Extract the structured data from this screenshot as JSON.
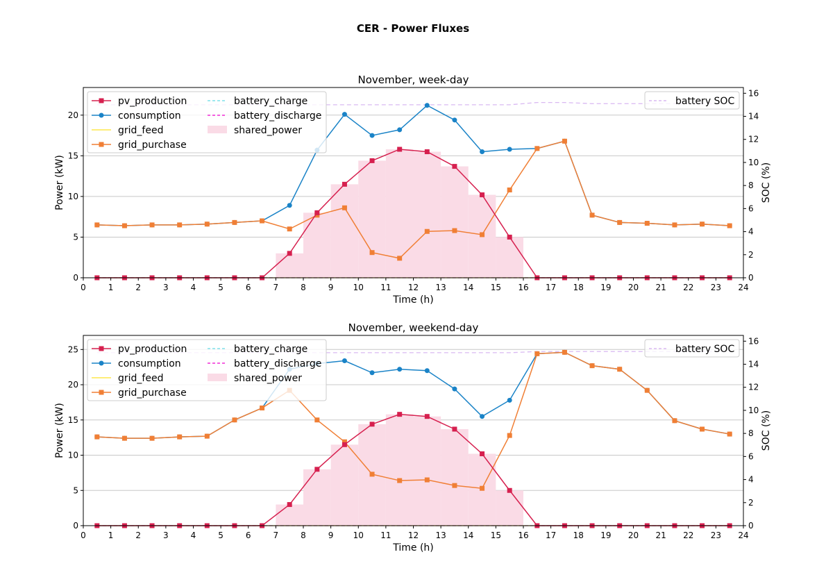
{
  "figure": {
    "title": "CER - Power Fluxes"
  },
  "colors": {
    "pv_production": "#d6204f",
    "consumption": "#1a83c7",
    "grid_feed": "#fde74c",
    "grid_purchase": "#f07f35",
    "battery_charge": "#7fe0ea",
    "battery_discharge": "#f02bd5",
    "shared_power": "#fadbe6",
    "battery_SOC": "#d9b8f2",
    "grid": "#c8c8c8"
  },
  "chart_data": [
    {
      "type": "line",
      "title": "November, week-day",
      "xlabel": "Time (h)",
      "ylabel": "Power (kW)",
      "y2label": "SOC (%)",
      "xlim": [
        0,
        24
      ],
      "ylim": [
        0,
        23.4
      ],
      "y2lim": [
        0,
        16.5
      ],
      "xticks": [
        0,
        1,
        2,
        3,
        4,
        5,
        6,
        7,
        8,
        9,
        10,
        11,
        12,
        13,
        14,
        15,
        16,
        17,
        18,
        19,
        20,
        21,
        22,
        23,
        24
      ],
      "yticks": [
        0,
        5,
        10,
        15,
        20
      ],
      "y2ticks": [
        0,
        2,
        4,
        6,
        8,
        10,
        12,
        14,
        16
      ],
      "grid": "horizontal",
      "legend_placement": "upper-left",
      "legend2_placement": "upper-right",
      "x": [
        0.5,
        1.5,
        2.5,
        3.5,
        4.5,
        5.5,
        6.5,
        7.5,
        8.5,
        9.5,
        10.5,
        11.5,
        12.5,
        13.5,
        14.5,
        15.5,
        16.5,
        17.5,
        18.5,
        19.5,
        20.5,
        21.5,
        22.5,
        23.5
      ],
      "series": [
        {
          "name": "pv_production",
          "kind": "line",
          "marker": "square",
          "values": [
            0,
            0,
            0,
            0,
            0,
            0,
            0,
            3,
            8,
            11.5,
            14.4,
            15.8,
            15.5,
            13.7,
            10.2,
            5,
            0,
            0,
            0,
            0,
            0,
            0,
            0,
            0
          ]
        },
        {
          "name": "consumption",
          "kind": "line",
          "marker": "circle",
          "values": [
            6.5,
            6.4,
            6.5,
            6.5,
            6.6,
            6.8,
            7,
            8.9,
            15.7,
            20.1,
            17.5,
            18.2,
            21.2,
            19.4,
            15.5,
            15.8,
            15.9,
            16.8,
            7.7,
            6.8,
            6.7,
            6.5,
            6.6,
            6.4
          ]
        },
        {
          "name": "grid_feed",
          "kind": "line",
          "marker": "none",
          "values": [
            0,
            0,
            0,
            0,
            0,
            0,
            0,
            0,
            0,
            0,
            0,
            0,
            0,
            0,
            0,
            0,
            0,
            0,
            0,
            0,
            0,
            0,
            0,
            0
          ]
        },
        {
          "name": "grid_purchase",
          "kind": "line",
          "marker": "square",
          "values": [
            6.5,
            6.4,
            6.5,
            6.5,
            6.6,
            6.8,
            7,
            6,
            7.7,
            8.6,
            3.1,
            2.4,
            5.7,
            5.8,
            5.3,
            10.8,
            15.9,
            16.8,
            7.7,
            6.8,
            6.7,
            6.5,
            6.6,
            6.4
          ]
        },
        {
          "name": "battery_charge",
          "kind": "dashed",
          "values": [
            0,
            0,
            0,
            0,
            0,
            0,
            0,
            0,
            0,
            0,
            0,
            0,
            0,
            0,
            0,
            0,
            0,
            0,
            0,
            0,
            0,
            0,
            0,
            0
          ]
        },
        {
          "name": "battery_discharge",
          "kind": "dashed",
          "values": [
            0,
            0,
            0,
            0,
            0,
            0,
            0,
            0,
            0,
            0,
            0,
            0,
            0,
            0,
            0,
            0,
            0,
            0,
            0,
            0,
            0,
            0,
            0,
            0
          ]
        },
        {
          "name": "shared_power",
          "kind": "step-fill",
          "values": [
            0,
            0,
            0,
            0,
            0,
            0,
            0,
            3,
            8,
            11.5,
            14.4,
            15.8,
            15.5,
            13.7,
            10.2,
            5,
            0,
            0,
            0,
            0,
            0,
            0,
            0,
            0
          ]
        },
        {
          "name": "battery SOC",
          "kind": "dashed",
          "axis": "right",
          "values": [
            15,
            15,
            15,
            15,
            15,
            15,
            15,
            15,
            15,
            15,
            15,
            15,
            15,
            15,
            15,
            15,
            15.2,
            15.2,
            15.1,
            15.1,
            15.1,
            15.1,
            15.1,
            15.1
          ]
        }
      ]
    },
    {
      "type": "line",
      "title": "November, weekend-day",
      "xlabel": "Time (h)",
      "ylabel": "Power (kW)",
      "y2label": "SOC (%)",
      "xlim": [
        0,
        24
      ],
      "ylim": [
        0,
        27
      ],
      "y2lim": [
        0,
        16.5
      ],
      "xticks": [
        0,
        1,
        2,
        3,
        4,
        5,
        6,
        7,
        8,
        9,
        10,
        11,
        12,
        13,
        14,
        15,
        16,
        17,
        18,
        19,
        20,
        21,
        22,
        23,
        24
      ],
      "yticks": [
        0,
        5,
        10,
        15,
        20,
        25
      ],
      "y2ticks": [
        0,
        2,
        4,
        6,
        8,
        10,
        12,
        14,
        16
      ],
      "grid": "horizontal",
      "legend_placement": "upper-left",
      "legend2_placement": "upper-right",
      "x": [
        0.5,
        1.5,
        2.5,
        3.5,
        4.5,
        5.5,
        6.5,
        7.5,
        8.5,
        9.5,
        10.5,
        11.5,
        12.5,
        13.5,
        14.5,
        15.5,
        16.5,
        17.5,
        18.5,
        19.5,
        20.5,
        21.5,
        22.5,
        23.5
      ],
      "series": [
        {
          "name": "pv_production",
          "kind": "line",
          "marker": "square",
          "values": [
            0,
            0,
            0,
            0,
            0,
            0,
            0,
            3,
            8,
            11.5,
            14.4,
            15.8,
            15.5,
            13.7,
            10.2,
            5,
            0,
            0,
            0,
            0,
            0,
            0,
            0,
            0
          ]
        },
        {
          "name": "consumption",
          "kind": "line",
          "marker": "circle",
          "values": [
            12.6,
            12.4,
            12.4,
            12.6,
            12.7,
            15,
            16.7,
            22.2,
            23,
            23.4,
            21.7,
            22.2,
            22,
            19.4,
            15.5,
            17.8,
            24.4,
            24.6,
            22.7,
            22.2,
            19.2,
            14.9,
            13.7,
            13
          ]
        },
        {
          "name": "grid_feed",
          "kind": "line",
          "marker": "none",
          "values": [
            0,
            0,
            0,
            0,
            0,
            0,
            0,
            0,
            0,
            0,
            0,
            0,
            0,
            0,
            0,
            0,
            0,
            0,
            0,
            0,
            0,
            0,
            0,
            0
          ]
        },
        {
          "name": "grid_purchase",
          "kind": "line",
          "marker": "square",
          "values": [
            12.6,
            12.4,
            12.4,
            12.6,
            12.7,
            15,
            16.7,
            19.2,
            15,
            11.9,
            7.3,
            6.4,
            6.5,
            5.7,
            5.3,
            12.8,
            24.4,
            24.6,
            22.7,
            22.2,
            19.2,
            14.9,
            13.7,
            13
          ]
        },
        {
          "name": "battery_charge",
          "kind": "dashed",
          "values": [
            0,
            0,
            0,
            0,
            0,
            0,
            0,
            0,
            0,
            0,
            0,
            0,
            0,
            0,
            0,
            0,
            0,
            0,
            0,
            0,
            0,
            0,
            0,
            0
          ]
        },
        {
          "name": "battery_discharge",
          "kind": "dashed",
          "values": [
            0,
            0,
            0,
            0,
            0,
            0,
            0,
            0,
            0,
            0,
            0,
            0,
            0,
            0,
            0,
            0,
            0,
            0,
            0,
            0,
            0,
            0,
            0,
            0
          ]
        },
        {
          "name": "shared_power",
          "kind": "step-fill",
          "values": [
            0,
            0,
            0,
            0,
            0,
            0,
            0,
            3,
            8,
            11.5,
            14.4,
            15.8,
            15.5,
            13.7,
            10.2,
            5,
            0,
            0,
            0,
            0,
            0,
            0,
            0,
            0
          ]
        },
        {
          "name": "battery SOC",
          "kind": "dashed",
          "axis": "right",
          "values": [
            15,
            15,
            15,
            15,
            15,
            15,
            15,
            15,
            15,
            15,
            15,
            15,
            15,
            15,
            15,
            15,
            15.1,
            15.1,
            15.1,
            15.1,
            15.1,
            15.1,
            15.1,
            15.1
          ]
        }
      ]
    }
  ]
}
